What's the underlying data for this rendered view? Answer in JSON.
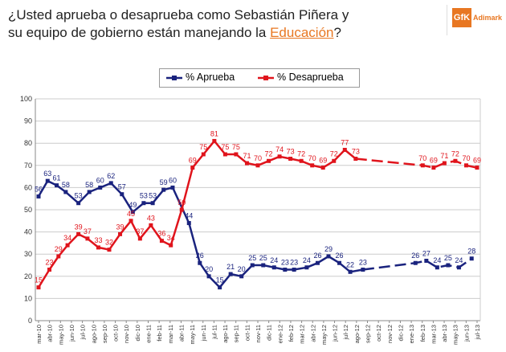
{
  "title": {
    "line1": "¿Usted aprueba o desaprueba como Sebastián Piñera y",
    "line2_prefix": "su equipo de gobierno están manejando la ",
    "line2_highlight": "Educación",
    "line2_suffix": "?"
  },
  "logo": {
    "mark": "GfK",
    "text": "Adimark"
  },
  "colors": {
    "aprueba": "#1a237e",
    "desaprueba": "#e0141c",
    "grid": "#cccccc",
    "accent": "#e87722"
  },
  "chart_data": {
    "type": "line",
    "title": "¿Usted aprueba o desaprueba como Sebastián Piñera y su equipo de gobierno están manejando la Educación?",
    "ylim": [
      0,
      100
    ],
    "yticks": [
      0,
      10,
      20,
      30,
      40,
      50,
      60,
      70,
      80,
      90,
      100
    ],
    "grid": true,
    "legend": "top-center",
    "categories": [
      "mar-10",
      "abr-10",
      "may-10",
      "jun-10",
      "jul-10",
      "ago-10",
      "sep-10",
      "oct-10",
      "nov-10",
      "dic-10",
      "ene-11",
      "feb-11",
      "mar-11",
      "abr-11",
      "may-11",
      "jun-11",
      "jul-11",
      "ago-11",
      "sep-11",
      "oct-11",
      "nov-11",
      "dic-11",
      "ene-12",
      "feb-12",
      "mar-12",
      "abr-12",
      "may-12",
      "jun-12",
      "jul-12",
      "ago-12",
      "sep-12",
      "oct-12",
      "nov-12",
      "dic-12",
      "ene-13",
      "feb-13",
      "mar-13",
      "abr-13",
      "may-13",
      "jun-13",
      "jul-13"
    ],
    "series": [
      {
        "name": "% Aprueba",
        "color": "#1a237e",
        "points": [
          {
            "x": 0,
            "y": 56,
            "label": "56"
          },
          {
            "x": 0.5,
            "y": 63,
            "label": "63"
          },
          {
            "x": 1,
            "y": 61,
            "label": "61"
          },
          {
            "x": 1.5,
            "y": 58,
            "label": "58"
          },
          {
            "x": 2.2,
            "y": 53,
            "label": "53"
          },
          {
            "x": 2.8,
            "y": 58,
            "label": "58"
          },
          {
            "x": 3.4,
            "y": 60,
            "label": "60"
          },
          {
            "x": 4,
            "y": 62,
            "label": "62"
          },
          {
            "x": 4.6,
            "y": 57,
            "label": "57"
          },
          {
            "x": 5.2,
            "y": 49,
            "label": "49"
          },
          {
            "x": 5.8,
            "y": 53,
            "label": "53"
          },
          {
            "x": 6.3,
            "y": 53,
            "label": "53"
          },
          {
            "x": 6.9,
            "y": 59,
            "label": "59"
          },
          {
            "x": 7.4,
            "y": 60,
            "label": "60"
          },
          {
            "x": 8.3,
            "y": 44,
            "label": "44"
          },
          {
            "x": 8.9,
            "y": 26,
            "label": "26"
          },
          {
            "x": 9.4,
            "y": 20,
            "label": "20"
          },
          {
            "x": 10,
            "y": 15,
            "label": "15"
          },
          {
            "x": 10.6,
            "y": 21,
            "label": "21"
          },
          {
            "x": 11.2,
            "y": 20,
            "label": "20"
          },
          {
            "x": 11.8,
            "y": 25,
            "label": "25"
          },
          {
            "x": 12.4,
            "y": 25,
            "label": "25"
          },
          {
            "x": 13,
            "y": 24,
            "label": "24"
          },
          {
            "x": 13.6,
            "y": 23,
            "label": "23"
          },
          {
            "x": 14.1,
            "y": 23,
            "label": "23"
          },
          {
            "x": 14.8,
            "y": 24,
            "label": "24"
          },
          {
            "x": 15.4,
            "y": 26,
            "label": "26"
          },
          {
            "x": 16,
            "y": 29,
            "label": "29"
          },
          {
            "x": 16.6,
            "y": 26,
            "label": "26"
          },
          {
            "x": 17.2,
            "y": 22,
            "label": "22"
          },
          {
            "x": 17.9,
            "y": 23,
            "label": "23"
          },
          {
            "x": 20.8,
            "y": 26,
            "label": "26"
          },
          {
            "x": 21.4,
            "y": 27,
            "label": "27"
          },
          {
            "x": 22,
            "y": 24,
            "label": "24"
          },
          {
            "x": 22.6,
            "y": 25,
            "label": "25"
          },
          {
            "x": 23.2,
            "y": 24,
            "label": "24"
          },
          {
            "x": 23.9,
            "y": 28,
            "label": "28"
          }
        ]
      },
      {
        "name": "% Desaprueba",
        "color": "#e0141c",
        "points": [
          {
            "x": 0,
            "y": 15,
            "label": "15"
          },
          {
            "x": 0.6,
            "y": 23,
            "label": "23"
          },
          {
            "x": 1.1,
            "y": 29,
            "label": "29"
          },
          {
            "x": 1.6,
            "y": 34,
            "label": "34"
          },
          {
            "x": 2.2,
            "y": 39,
            "label": "39"
          },
          {
            "x": 2.7,
            "y": 37,
            "label": "37"
          },
          {
            "x": 3.3,
            "y": 33,
            "label": "33"
          },
          {
            "x": 3.9,
            "y": 32,
            "label": "32"
          },
          {
            "x": 4.5,
            "y": 39,
            "label": "39"
          },
          {
            "x": 5.1,
            "y": 45,
            "label": "45"
          },
          {
            "x": 5.6,
            "y": 37,
            "label": "37"
          },
          {
            "x": 6.2,
            "y": 43,
            "label": "43"
          },
          {
            "x": 6.8,
            "y": 36,
            "label": "36"
          },
          {
            "x": 7.3,
            "y": 34,
            "label": "34"
          },
          {
            "x": 7.9,
            "y": 50,
            "label": "50"
          },
          {
            "x": 8.5,
            "y": 69,
            "label": "69"
          },
          {
            "x": 9.1,
            "y": 75,
            "label": "75"
          },
          {
            "x": 9.7,
            "y": 81,
            "label": "81"
          },
          {
            "x": 10.3,
            "y": 75,
            "label": "75"
          },
          {
            "x": 10.9,
            "y": 75,
            "label": "75"
          },
          {
            "x": 11.5,
            "y": 71,
            "label": "71"
          },
          {
            "x": 12.1,
            "y": 70,
            "label": "70"
          },
          {
            "x": 12.7,
            "y": 72,
            "label": "72"
          },
          {
            "x": 13.3,
            "y": 74,
            "label": "74"
          },
          {
            "x": 13.9,
            "y": 73,
            "label": "73"
          },
          {
            "x": 14.5,
            "y": 72,
            "label": "72"
          },
          {
            "x": 15.1,
            "y": 70,
            "label": "70"
          },
          {
            "x": 15.7,
            "y": 69,
            "label": "69"
          },
          {
            "x": 16.3,
            "y": 72,
            "label": "72"
          },
          {
            "x": 16.9,
            "y": 77,
            "label": "77"
          },
          {
            "x": 17.5,
            "y": 73,
            "label": "73"
          },
          {
            "x": 21.2,
            "y": 70,
            "label": "70"
          },
          {
            "x": 21.8,
            "y": 69,
            "label": "69"
          },
          {
            "x": 22.4,
            "y": 71,
            "label": "71"
          },
          {
            "x": 23,
            "y": 72,
            "label": "72"
          },
          {
            "x": 23.6,
            "y": 70,
            "label": "70"
          },
          {
            "x": 24.2,
            "y": 69,
            "label": "69"
          }
        ]
      }
    ],
    "dashed_segments_after_index": 30
  }
}
